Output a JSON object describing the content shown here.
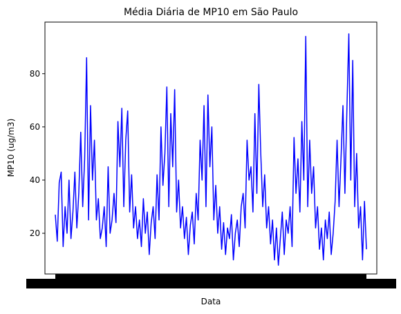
{
  "chart_data": {
    "type": "line",
    "title": "Média Diária de MP10 em São Paulo",
    "xlabel": "Data",
    "ylabel": "MP10 (ug/m3)",
    "color": "#0000ff",
    "values": [
      27,
      17,
      39,
      43,
      15,
      30,
      20,
      40,
      18,
      28,
      43,
      22,
      35,
      58,
      30,
      48,
      86,
      25,
      68,
      40,
      55,
      25,
      33,
      18,
      22,
      30,
      15,
      45,
      20,
      25,
      35,
      24,
      62,
      45,
      67,
      30,
      55,
      66,
      28,
      42,
      22,
      30,
      18,
      25,
      15,
      33,
      20,
      28,
      12,
      24,
      30,
      18,
      42,
      25,
      60,
      38,
      50,
      75,
      30,
      65,
      45,
      74,
      28,
      40,
      22,
      30,
      18,
      26,
      12,
      23,
      28,
      16,
      35,
      25,
      55,
      40,
      68,
      30,
      72,
      45,
      60,
      25,
      38,
      20,
      30,
      14,
      24,
      12,
      22,
      18,
      27,
      10,
      20,
      25,
      15,
      30,
      35,
      22,
      55,
      40,
      45,
      28,
      65,
      35,
      76,
      50,
      30,
      42,
      22,
      30,
      16,
      25,
      10,
      22,
      8,
      18,
      28,
      12,
      25,
      20,
      30,
      15,
      56,
      35,
      48,
      28,
      62,
      40,
      94,
      30,
      55,
      35,
      45,
      22,
      30,
      14,
      22,
      10,
      25,
      18,
      28,
      12,
      20,
      32,
      55,
      30,
      48,
      68,
      35,
      66,
      95,
      40,
      85,
      30,
      50,
      22,
      30,
      10,
      32,
      14
    ],
    "ylim": [
      4.7,
      99.4
    ],
    "yticks": [
      20,
      40,
      60,
      80
    ]
  }
}
